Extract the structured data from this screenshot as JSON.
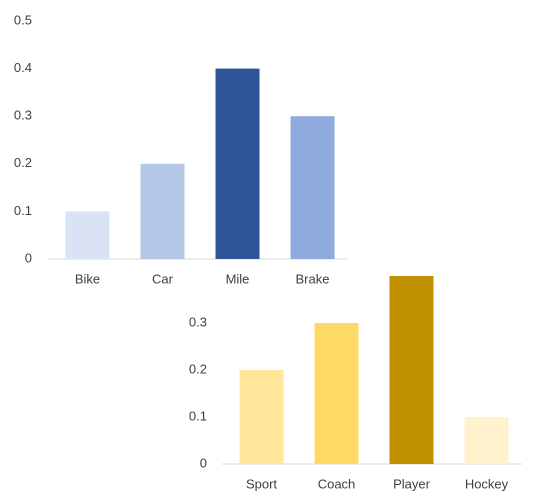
{
  "chart_data": [
    {
      "type": "bar",
      "categories": [
        "Bike",
        "Car",
        "Mile",
        "Brake"
      ],
      "values": [
        0.1,
        0.2,
        0.4,
        0.3
      ],
      "colors": [
        "#dae3f3",
        "#b4c7e7",
        "#2f5597",
        "#8faadc"
      ],
      "ylim": [
        0,
        0.5
      ],
      "yticks": [
        0,
        0.1,
        0.2,
        0.3,
        0.4,
        0.5
      ],
      "grid": false
    },
    {
      "type": "bar",
      "categories": [
        "Sport",
        "Coach",
        "Player",
        "Hockey"
      ],
      "values": [
        0.2,
        0.3,
        0.4,
        0.1
      ],
      "colors": [
        "#ffe699",
        "#ffd966",
        "#bf9000",
        "#fff2cc"
      ],
      "ylim": [
        0,
        0.4
      ],
      "yticks": [
        0,
        0.1,
        0.2,
        0.3
      ],
      "grid": false
    }
  ]
}
